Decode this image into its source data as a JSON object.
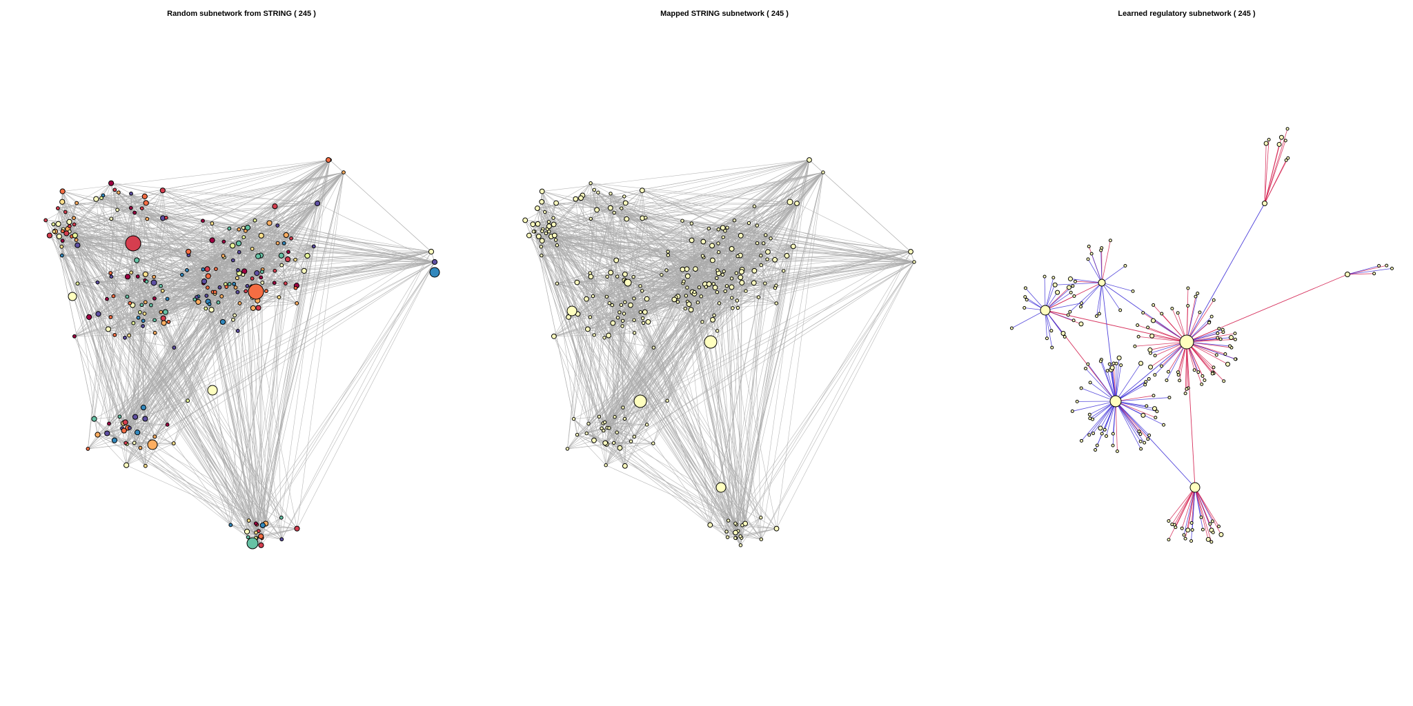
{
  "panels": [
    {
      "title": "Random subnetwork from STRING ( 245 )"
    },
    {
      "title": "Mapped STRING subnetwork ( 245 )"
    },
    {
      "title": "Learned regulatory subnetwork ( 245 )"
    }
  ],
  "colors": {
    "edge_gray": "#aaaaaa",
    "edge_blue": "#3a2bd6",
    "edge_red": "#d21a4a",
    "node_pale_yellow": "#ffffbf",
    "node_red": "#d53e4f",
    "node_dark_red": "#9e0142",
    "node_orange": "#f46d43",
    "node_light_orange": "#fdae61",
    "node_yellow": "#fee08b",
    "node_blue": "#3288bd",
    "node_teal": "#66c2a5",
    "node_purple": "#5e4fa2",
    "node_light_green": "#e6f598"
  }
}
